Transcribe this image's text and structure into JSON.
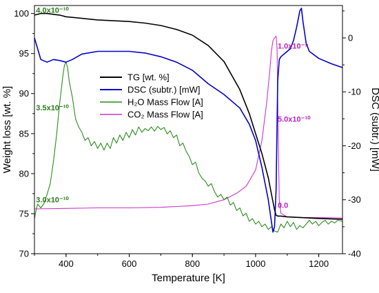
{
  "chart_data": {
    "type": "line",
    "xlabel": "Temperature [K]",
    "ylabel_left": "Weight loss [wt. %]",
    "ylabel_right": "DSC (subtr.) [mW]",
    "xlim": [
      300,
      1275
    ],
    "ylim_left": [
      70,
      101
    ],
    "ylim_right": [
      -40,
      6
    ],
    "x_ticks": [
      400,
      600,
      800,
      1000,
      1200
    ],
    "y_left_ticks": [
      70,
      75,
      80,
      85,
      90,
      95,
      100
    ],
    "y_right_ticks": [
      -40,
      -30,
      -20,
      -10,
      0
    ],
    "grid": false,
    "legend_position": "center",
    "colors": {
      "tg": "#000000",
      "dsc": "#0000cc",
      "h2o": "#2a8a1c",
      "co2": "#cc33cc",
      "h2o_label": "#2a7d18",
      "co2_label": "#bb22bb"
    },
    "series": [
      {
        "name": "TG [wt. %]",
        "axis": "left",
        "x": [
          300,
          320,
          340,
          360,
          380,
          400,
          450,
          500,
          550,
          600,
          650,
          700,
          750,
          800,
          850,
          900,
          950,
          980,
          1000,
          1020,
          1040,
          1050,
          1060,
          1065,
          1070,
          1080,
          1100,
          1150,
          1200,
          1275
        ],
        "values": [
          99.8,
          100.0,
          100.0,
          99.9,
          99.8,
          99.6,
          99.4,
          99.2,
          99.1,
          99.0,
          98.8,
          98.5,
          98.0,
          97.3,
          96.0,
          94.0,
          90.5,
          87.5,
          85.0,
          82.5,
          79.5,
          77.5,
          75.5,
          74.8,
          74.7,
          74.7,
          74.6,
          74.5,
          74.4,
          74.3
        ]
      },
      {
        "name": "DSC (subtr.) [mW]",
        "axis": "right",
        "x": [
          300,
          310,
          320,
          340,
          360,
          380,
          400,
          420,
          450,
          500,
          550,
          600,
          650,
          700,
          750,
          800,
          850,
          900,
          950,
          980,
          1000,
          1020,
          1040,
          1050,
          1055,
          1060,
          1065,
          1070,
          1075,
          1080,
          1090,
          1100,
          1110,
          1120,
          1130,
          1140,
          1145,
          1150,
          1160,
          1170,
          1200,
          1240,
          1275
        ],
        "values": [
          0,
          -2,
          -4,
          -4.5,
          -4,
          -4.2,
          -4.5,
          -4,
          -3,
          -2.5,
          -2.5,
          -2.5,
          -2.8,
          -3.5,
          -4.5,
          -6,
          -8.5,
          -10.5,
          -13,
          -16,
          -19,
          -24,
          -30,
          -34,
          -36,
          -35,
          -28,
          -8,
          -4,
          -3.5,
          -3,
          -2.5,
          -2,
          -0.5,
          2,
          5,
          5.5,
          3,
          -1,
          -2.5,
          -3.8,
          -4.8,
          -5.5
        ]
      },
      {
        "name": "H₂O Mass Flow [A]",
        "axis": "right",
        "x": [
          300,
          305,
          310,
          320,
          330,
          340,
          350,
          360,
          370,
          380,
          390,
          395,
          400,
          405,
          410,
          420,
          430,
          440,
          450,
          460,
          470,
          480,
          490,
          500,
          510,
          520,
          530,
          540,
          550,
          560,
          570,
          580,
          590,
          600,
          610,
          620,
          630,
          640,
          650,
          660,
          670,
          680,
          690,
          700,
          710,
          720,
          730,
          740,
          750,
          760,
          770,
          780,
          790,
          800,
          810,
          820,
          830,
          840,
          850,
          860,
          870,
          880,
          890,
          900,
          910,
          920,
          930,
          940,
          950,
          960,
          970,
          980,
          990,
          1000,
          1010,
          1020,
          1030,
          1040,
          1050,
          1060,
          1070,
          1080,
          1090,
          1100,
          1110,
          1120,
          1130,
          1140,
          1150,
          1160,
          1170,
          1180,
          1190,
          1200,
          1210,
          1220,
          1230,
          1240,
          1250,
          1260,
          1275
        ],
        "values": [
          -33.5,
          -32,
          -30.8,
          -31.5,
          -30.7,
          -29,
          -27,
          -23,
          -18,
          -12,
          -7,
          -5,
          -4.5,
          -5.5,
          -8,
          -11,
          -15,
          -16.5,
          -17.5,
          -19,
          -18.5,
          -20,
          -19.2,
          -20.5,
          -19.5,
          -20.8,
          -19.5,
          -20.5,
          -18.5,
          -19.5,
          -18,
          -19,
          -17.5,
          -18.5,
          -17,
          -18,
          -16.5,
          -17.5,
          -16.8,
          -17.2,
          -16.5,
          -17.3,
          -16.4,
          -17,
          -16.6,
          -17.8,
          -17.2,
          -18.5,
          -18,
          -20,
          -19.5,
          -21,
          -22,
          -23.5,
          -23,
          -25,
          -26,
          -26.5,
          -27.5,
          -27,
          -28.5,
          -29.5,
          -29,
          -30,
          -29.5,
          -31,
          -30.5,
          -32,
          -31.5,
          -33,
          -32.5,
          -34,
          -33.5,
          -34.5,
          -34,
          -35,
          -34.5,
          -35.5,
          -35,
          -35.8,
          -36,
          -34.5,
          -35.2,
          -34,
          -35,
          -34.2,
          -35.5,
          -34.8,
          -35.2,
          -34.5,
          -33.8,
          -34.5,
          -34,
          -34.8,
          -34.2,
          -33.8,
          -34.5,
          -34,
          -34.3,
          -33.8,
          -34
        ]
      },
      {
        "name": "CO₂ Mass Flow [A]",
        "axis": "right",
        "x": [
          300,
          400,
          500,
          600,
          700,
          800,
          850,
          900,
          940,
          970,
          1000,
          1020,
          1035,
          1045,
          1050,
          1055,
          1060,
          1065,
          1068,
          1072,
          1075,
          1080,
          1100,
          1150,
          1200,
          1275
        ],
        "values": [
          -31.7,
          -31.6,
          -31.5,
          -31.5,
          -31.4,
          -31.1,
          -30.8,
          -30,
          -28.8,
          -27.5,
          -24.5,
          -19,
          -12,
          -6,
          -2.5,
          -0.5,
          0,
          0.3,
          -2,
          -20,
          -30,
          -32.5,
          -33.2,
          -33.3,
          -33.3,
          -33.4
        ]
      }
    ],
    "annotations": {
      "h2o": [
        {
          "label": "4.0x10⁻¹⁰",
          "at": [
            305,
            100.1
          ]
        },
        {
          "label": "3.5x10⁻¹⁰",
          "at": [
            305,
            87.9
          ]
        },
        {
          "label": "3.0x10⁻¹⁰",
          "at": [
            305,
            76.4
          ]
        }
      ],
      "co2": [
        {
          "label": "1.0x10⁻⁹",
          "at": [
            1070,
            -2
          ]
        },
        {
          "label": "5.0x10⁻¹⁰",
          "at": [
            1070,
            -15.5
          ]
        },
        {
          "label": "0.0",
          "at": [
            1070,
            -31.5
          ]
        }
      ]
    }
  }
}
